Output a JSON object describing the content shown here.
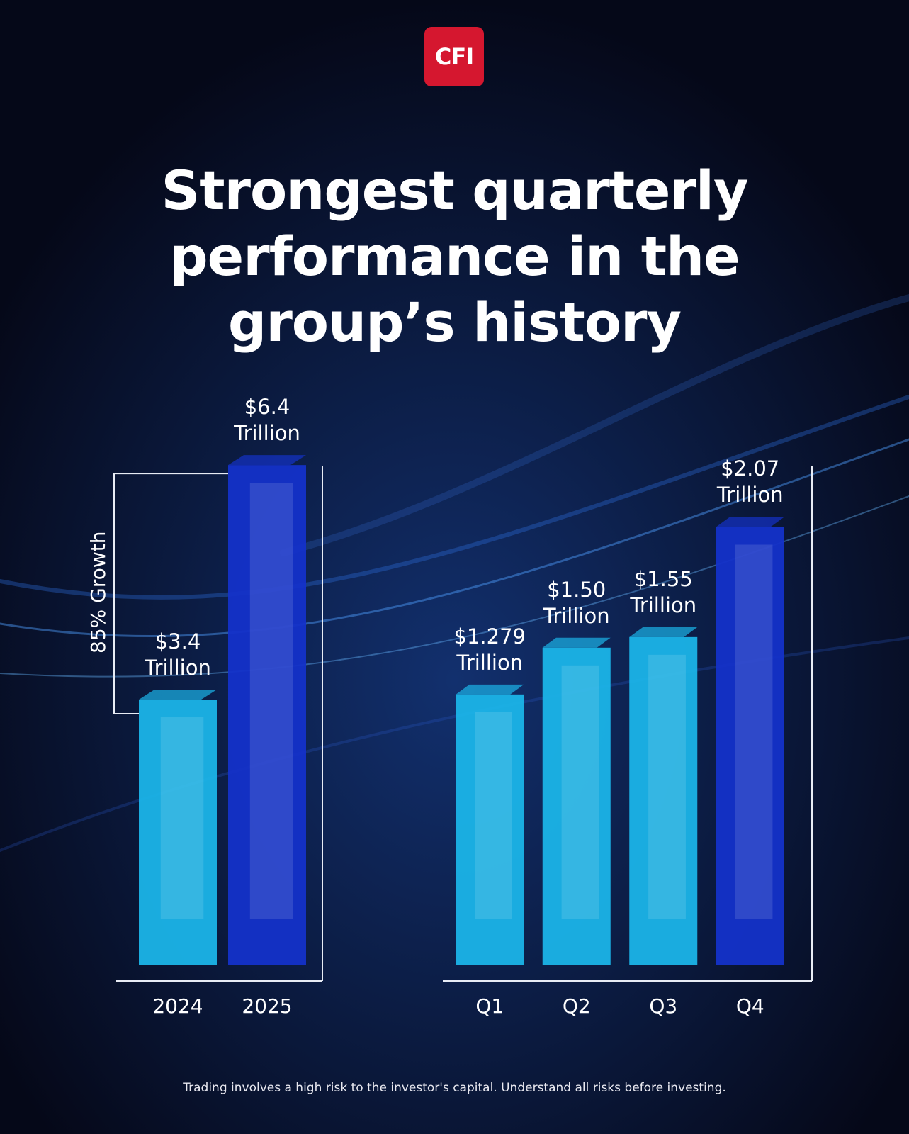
{
  "logo": "CFI",
  "title": "Strongest quarterly performance in the group’s history",
  "disclaimer": "Trading involves a high risk to the investor's capital. Understand all risks before investing.",
  "chart_data": [
    {
      "type": "bar",
      "categories": [
        "2024",
        "2025"
      ],
      "values": [
        3.4,
        6.4
      ],
      "value_labels": [
        "$3.4 Trillion",
        "$6.4 Trillion"
      ],
      "colors": [
        "#1bb4e8",
        "#1432c9"
      ],
      "annotation": "85% Growth",
      "ylim": [
        0,
        7
      ]
    },
    {
      "type": "bar",
      "categories": [
        "Q1",
        "Q2",
        "Q3",
        "Q4"
      ],
      "values": [
        1.279,
        1.5,
        1.55,
        2.07
      ],
      "value_labels": [
        "$1.279 Trillion",
        "$1.50 Trillion",
        "$1.55 Trillion",
        "$2.07 Trillion"
      ],
      "colors": [
        "#1bb4e8",
        "#1bb4e8",
        "#1bb4e8",
        "#1432c9"
      ],
      "ylim": [
        0,
        2.5
      ]
    }
  ]
}
